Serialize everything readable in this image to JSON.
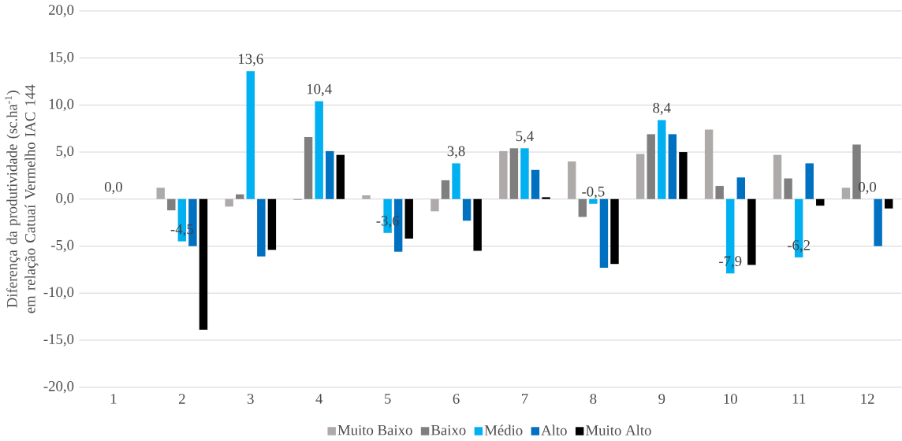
{
  "chart_data": {
    "type": "bar",
    "ylabel": "Diferença da produtividade (sc.ha$^{-1}$) em relação Catuaí Vermelho IAC 144",
    "categories": [
      "1",
      "2",
      "3",
      "4",
      "5",
      "6",
      "7",
      "8",
      "9",
      "10",
      "11",
      "12"
    ],
    "series": [
      {
        "name": "Muito Baixo",
        "color": "#aeaaaa",
        "values": [
          0,
          1.2,
          -0.8,
          -0.1,
          0.4,
          -1.3,
          5.1,
          4.0,
          4.8,
          7.4,
          4.7,
          1.2
        ]
      },
      {
        "name": "Baixo",
        "color": "#7f7f7f",
        "values": [
          0,
          -1.2,
          0.5,
          6.6,
          0,
          2.0,
          5.4,
          -1.9,
          6.9,
          1.4,
          2.2,
          5.8
        ]
      },
      {
        "name": "Médio",
        "color": "#00b0f0",
        "values": [
          0.0,
          -4.5,
          13.6,
          10.4,
          -3.6,
          3.8,
          5.4,
          -0.5,
          8.4,
          -7.9,
          -6.2,
          0.0
        ],
        "value_labels": [
          "0,0",
          "-4,5",
          "13,6",
          "10,4",
          "-3,6",
          "3,8",
          "5,4",
          "-0,5",
          "8,4",
          "-7,9",
          "-6,2",
          "0,0"
        ]
      },
      {
        "name": "Alto",
        "color": "#0070c0",
        "values": [
          0,
          -5.0,
          -6.1,
          5.1,
          -5.6,
          -2.3,
          3.1,
          -7.3,
          6.9,
          2.3,
          3.8,
          -5.0
        ]
      },
      {
        "name": "Muito Alto",
        "color": "#000000",
        "values": [
          0,
          -13.9,
          -5.4,
          4.7,
          -4.2,
          -5.5,
          0.2,
          -6.9,
          5.0,
          -7.0,
          -0.7,
          -1.0
        ]
      }
    ],
    "ylim": [
      -20,
      20
    ],
    "yticks": [
      {
        "value": -20,
        "label": "-20,0"
      },
      {
        "value": -15,
        "label": "-15,0"
      },
      {
        "value": -10,
        "label": "-10,0"
      },
      {
        "value": -5,
        "label": "-5,0"
      },
      {
        "value": 0,
        "label": "0,0"
      },
      {
        "value": 5,
        "label": "5,0"
      },
      {
        "value": 10,
        "label": "10,0"
      },
      {
        "value": 15,
        "label": "15,0"
      },
      {
        "value": 20,
        "label": "20,0"
      }
    ],
    "grid": "y",
    "legend": "bottom"
  }
}
